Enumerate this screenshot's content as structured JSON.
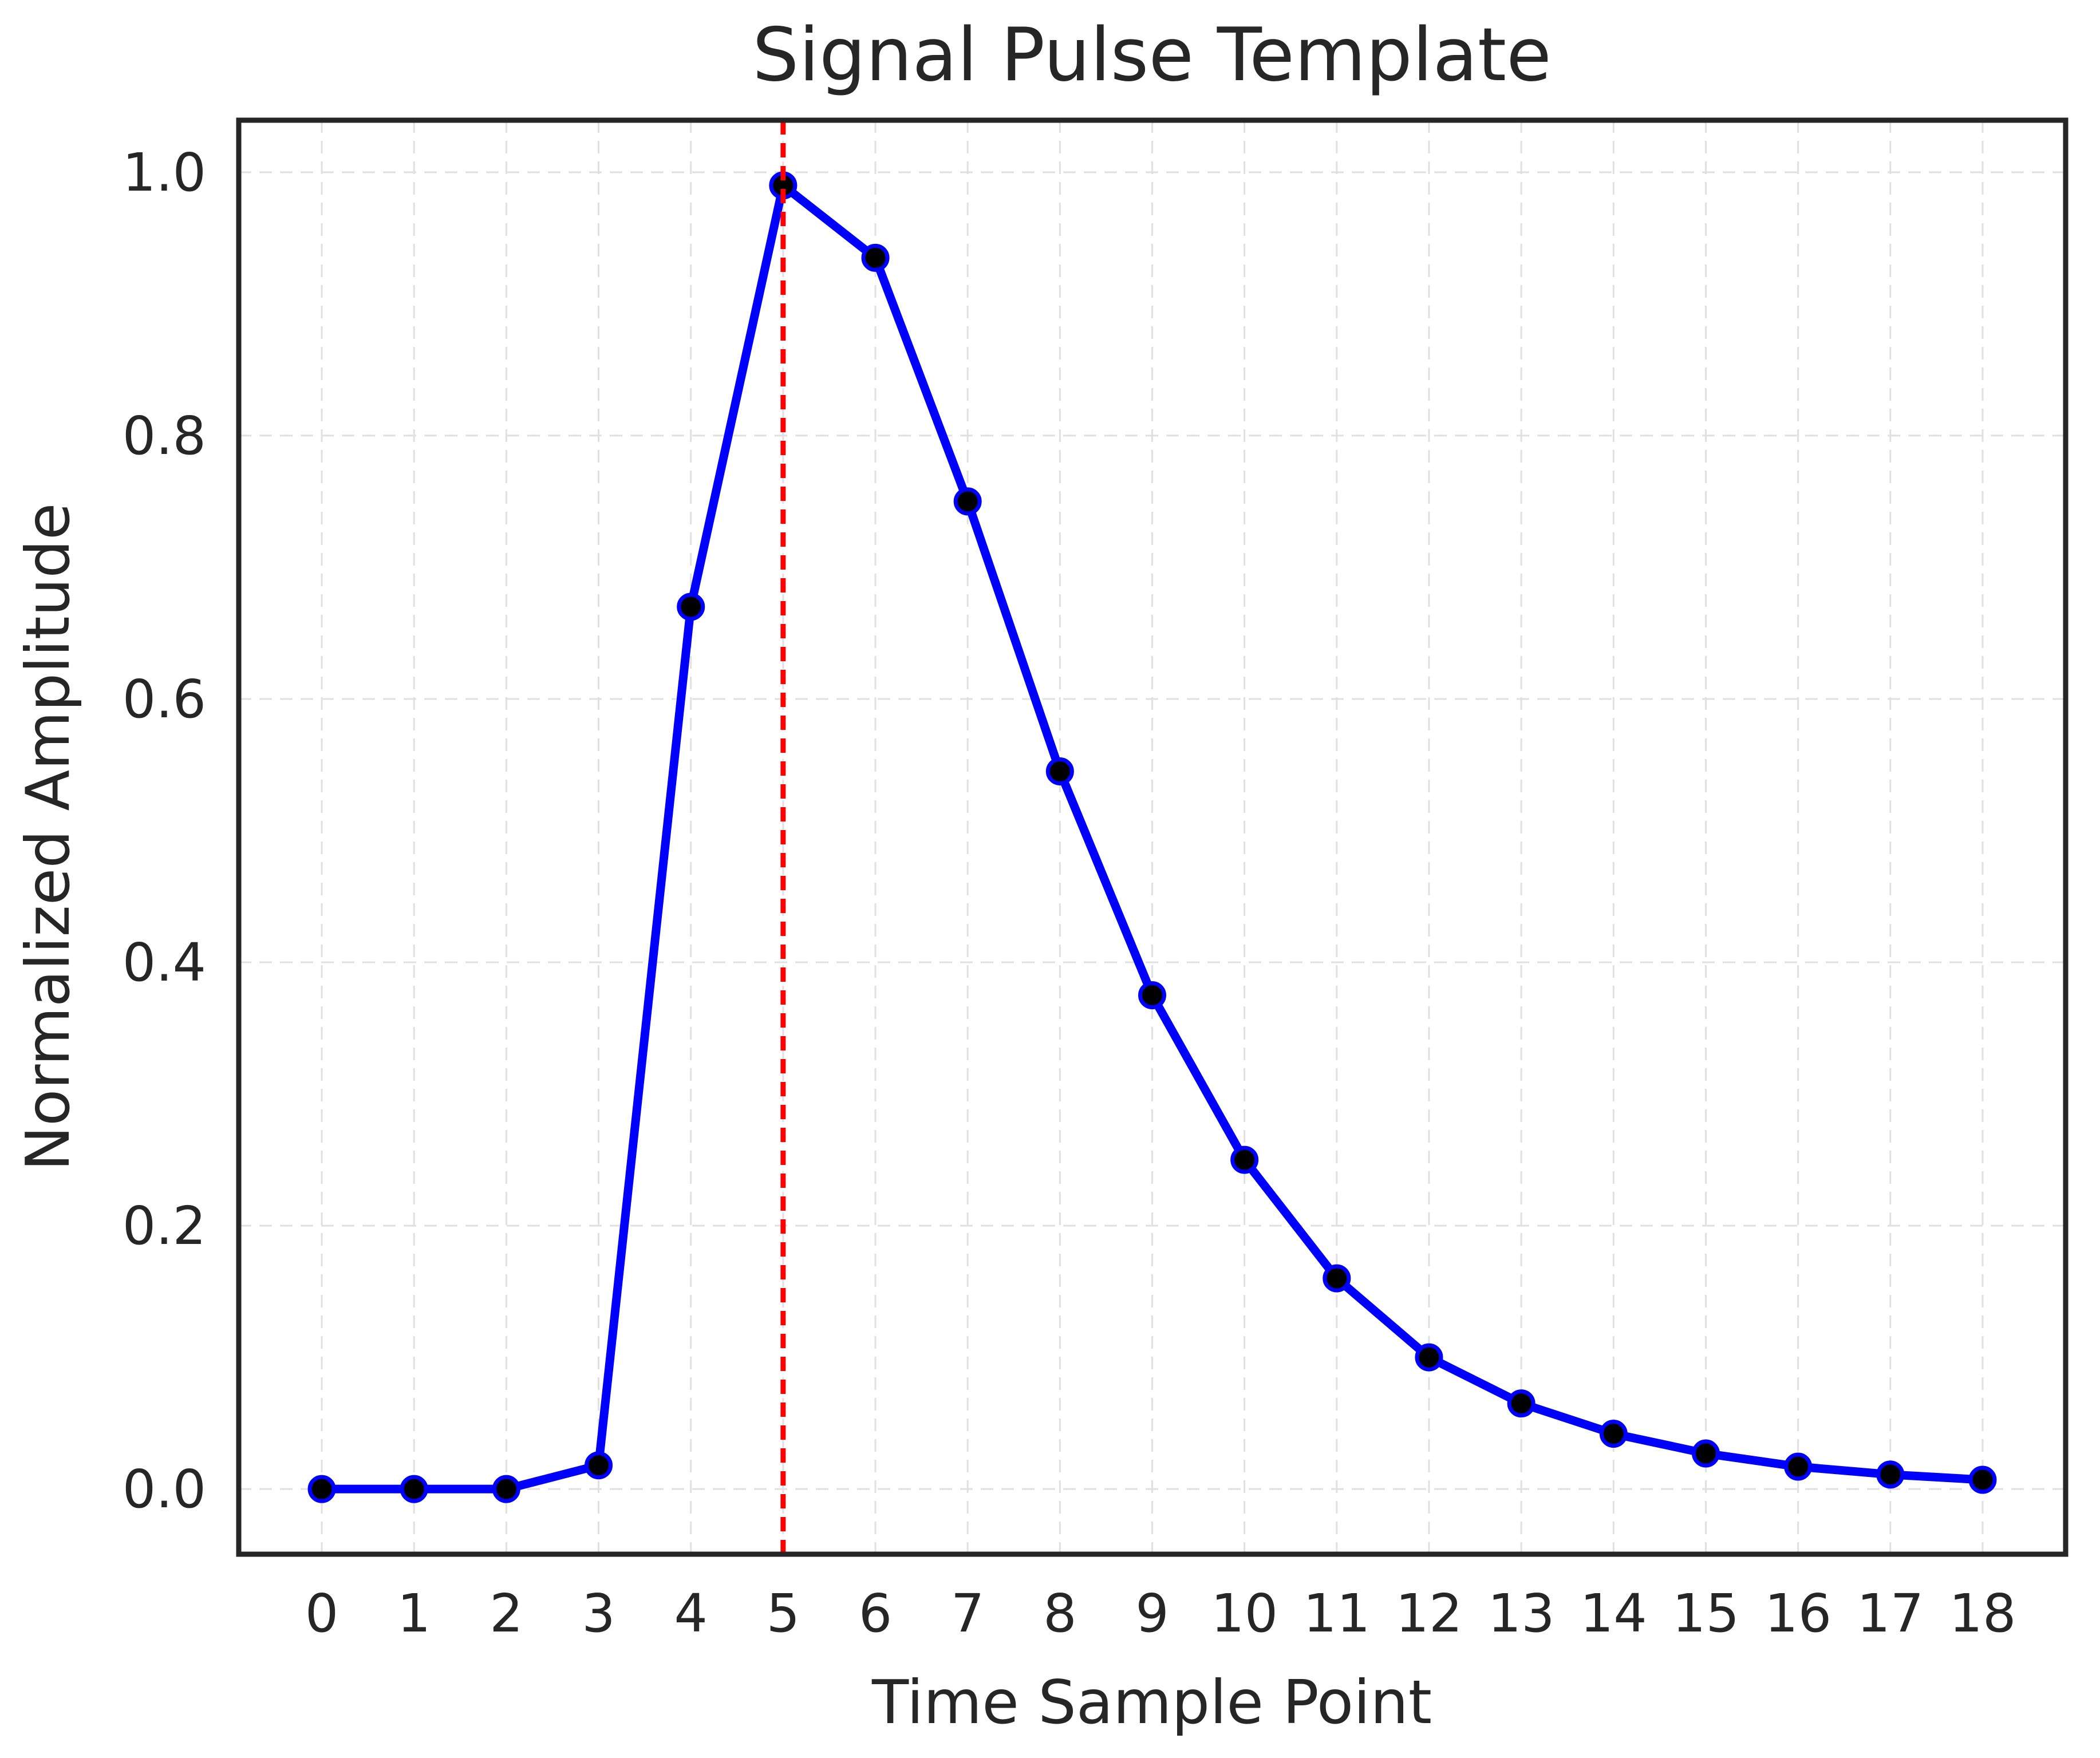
{
  "chart_data": {
    "type": "line",
    "title": "Signal Pulse Template",
    "xlabel": "Time Sample Point",
    "ylabel": "Normalized Amplitude",
    "x": [
      0,
      1,
      2,
      3,
      4,
      5,
      6,
      7,
      8,
      9,
      10,
      11,
      12,
      13,
      14,
      15,
      16,
      17,
      18
    ],
    "values": [
      0.0,
      0.0,
      0.0,
      0.018,
      0.67,
      0.99,
      0.935,
      0.75,
      0.545,
      0.375,
      0.25,
      0.16,
      0.1,
      0.065,
      0.042,
      0.027,
      0.017,
      0.011,
      0.007
    ],
    "x_tick_labels": [
      "0",
      "1",
      "2",
      "3",
      "4",
      "5",
      "6",
      "7",
      "8",
      "9",
      "10",
      "11",
      "12",
      "13",
      "14",
      "15",
      "16",
      "17",
      "18"
    ],
    "y_ticks": [
      0.0,
      0.2,
      0.4,
      0.6,
      0.8,
      1.0
    ],
    "y_tick_labels": [
      "0.0",
      "0.2",
      "0.4",
      "0.6",
      "0.8",
      "1.0"
    ],
    "xlim": [
      -0.9,
      18.9
    ],
    "ylim": [
      -0.0495,
      1.0395
    ],
    "grid": true,
    "grid_style": "dashed",
    "vline_x": 5,
    "peak_value": 0.99,
    "legend_position": "none",
    "colors": {
      "line": "#0000ff",
      "marker_face": "#000000",
      "marker_edge": "#0000ff",
      "vline": "#ff0000",
      "grid": "#e0e0e0",
      "spine": "#262626",
      "text": "#262626",
      "background": "#ffffff"
    }
  }
}
